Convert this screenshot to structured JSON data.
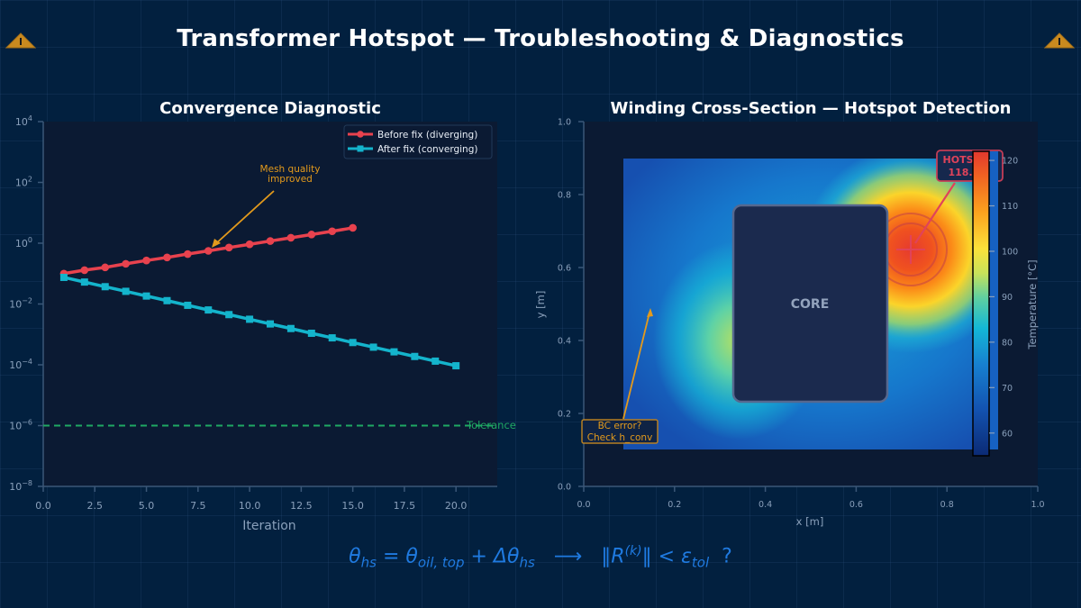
{
  "header": {
    "title": "Transformer Hotspot — Troubleshooting & Diagnostics",
    "warning_icon_left": "warning-triangle-icon",
    "warning_icon_right": "warning-triangle-icon",
    "warning_glyph": "!"
  },
  "colors": {
    "background": "#02203f",
    "plot_background": "#0b1a33",
    "before_fix": "#e8424e",
    "after_fix": "#14b4cc",
    "tolerance": "#1fa863",
    "annotation": "#e39a1c",
    "hotspot_label": "#e0435a",
    "axis_text": "#8aa0bb",
    "formula": "#1f7ae0"
  },
  "chart_data": [
    {
      "type": "line",
      "title": "Convergence Diagnostic",
      "xlabel": "Iteration",
      "ylabel": "",
      "yscale": "log",
      "xlim": [
        0,
        22
      ],
      "ylim": [
        1e-08,
        10000.0
      ],
      "x_ticks": [
        "0.0",
        "2.5",
        "5.0",
        "7.5",
        "10.0",
        "12.5",
        "15.0",
        "17.5",
        "20.0"
      ],
      "y_ticks": [
        "10^4",
        "10^2",
        "10^0",
        "10^-2",
        "10^-4",
        "10^-6",
        "10^-8"
      ],
      "grid": false,
      "legend_position": "upper right",
      "series": [
        {
          "name": "Before fix (diverging)",
          "marker": "circle",
          "x": [
            1,
            2,
            3,
            4,
            5,
            6,
            7,
            8,
            9,
            10,
            11,
            12,
            13,
            14,
            15
          ],
          "values": [
            0.1,
            0.13,
            0.16,
            0.21,
            0.27,
            0.34,
            0.44,
            0.56,
            0.72,
            0.92,
            1.18,
            1.51,
            1.93,
            2.47,
            3.2
          ]
        },
        {
          "name": "After fix (converging)",
          "marker": "square",
          "x": [
            1,
            2,
            3,
            4,
            5,
            6,
            7,
            8,
            9,
            10,
            11,
            12,
            13,
            14,
            15,
            16,
            17,
            18,
            19,
            20
          ],
          "values": [
            0.075,
            0.0527,
            0.0371,
            0.0261,
            0.0183,
            0.0129,
            0.00906,
            0.00637,
            0.00448,
            0.00315,
            0.00221,
            0.00156,
            0.00109,
            0.00077,
            0.00054,
            0.00038,
            0.000267,
            0.000188,
            0.000132,
            9.3e-05
          ]
        }
      ],
      "reference_lines": [
        {
          "label": "Tolerance",
          "y": 1e-06,
          "style": "dashed"
        }
      ],
      "annotations": [
        {
          "text_lines": [
            "Mesh quality",
            "improved"
          ],
          "arrow_to": {
            "x": 8,
            "y": 0.56
          }
        }
      ]
    },
    {
      "type": "heatmap",
      "title": "Winding Cross-Section — Hotspot Detection",
      "xlabel": "x [m]",
      "ylabel": "y [m]",
      "xlim": [
        0,
        1
      ],
      "ylim": [
        0,
        1
      ],
      "x_ticks": [
        "0.0",
        "0.2",
        "0.4",
        "0.6",
        "0.8",
        "1.0"
      ],
      "y_ticks": [
        "0.0",
        "0.2",
        "0.4",
        "0.6",
        "0.8",
        "1.0"
      ],
      "extent": {
        "x": [
          0.09,
          0.91
        ],
        "y": [
          0.1,
          0.9
        ]
      },
      "colorbar": {
        "label": "Temperature [°C]",
        "range": [
          55,
          122
        ],
        "ticks": [
          "60",
          "70",
          "80",
          "90",
          "100",
          "110",
          "120"
        ],
        "colormap": "blue-cyan-yellow-red"
      },
      "core": {
        "label": "CORE",
        "x": [
          0.33,
          0.67
        ],
        "y": [
          0.23,
          0.77
        ]
      },
      "hotspots": [
        {
          "x": 0.72,
          "y": 0.65,
          "peak": 118
        },
        {
          "x": 0.34,
          "y": 0.4,
          "peak": 88
        }
      ],
      "annotations": [
        {
          "text_lines": [
            "HOTSPOT",
            "118.?°C"
          ],
          "visible_fragments": [
            "HOTS",
            "T",
            "118.",
            "C"
          ],
          "arrow_to": {
            "x": 0.72,
            "y": 0.65
          }
        },
        {
          "text_lines": [
            "BC error?",
            "Check h_conv"
          ],
          "arrow_to": {
            "x": 0.15,
            "y": 0.49
          }
        }
      ]
    }
  ],
  "formula": {
    "lhs": "θ",
    "lhs_sub": "hs",
    "eq": " = ",
    "t1": "θ",
    "t1_sub": "oil, top",
    "plus": " + ",
    "t2": "Δθ",
    "t2_sub": "hs",
    "arrow": "   ⟶   ",
    "norm_open": "‖R",
    "norm_sup": "(k)",
    "norm_close": "‖",
    "lt": " < ",
    "eps": "ε",
    "eps_sub": "tol",
    "q": "  ?"
  }
}
